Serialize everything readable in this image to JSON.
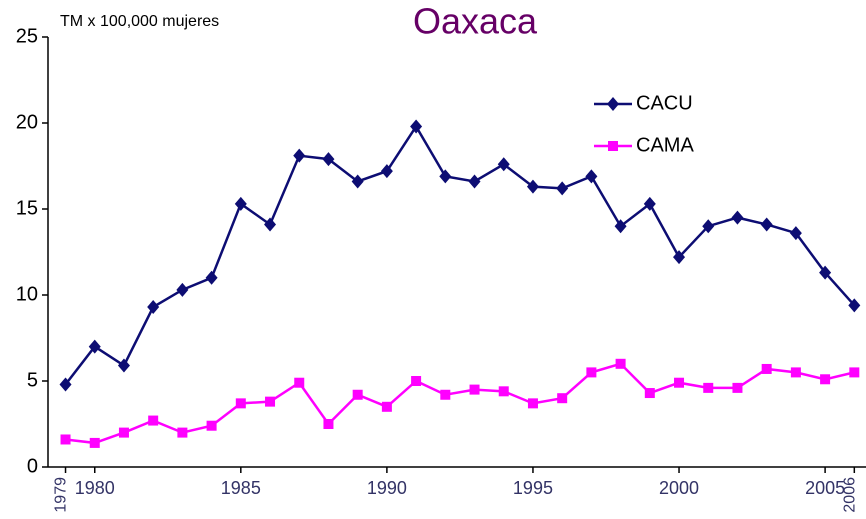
{
  "chart_data": {
    "type": "line",
    "title": "Oaxaca",
    "y_axis_label": "TM x 100,000 mujeres",
    "x": [
      1979,
      1980,
      1981,
      1982,
      1983,
      1984,
      1985,
      1986,
      1987,
      1988,
      1989,
      1990,
      1991,
      1992,
      1993,
      1994,
      1995,
      1996,
      1997,
      1998,
      1999,
      2000,
      2001,
      2002,
      2003,
      2004,
      2005,
      2006
    ],
    "series": [
      {
        "name": "CACU",
        "color": "#0d0d73",
        "marker": "diamond",
        "values": [
          4.8,
          7.0,
          5.9,
          9.3,
          10.3,
          11.0,
          15.3,
          14.1,
          18.1,
          17.9,
          16.6,
          17.2,
          19.8,
          16.9,
          16.6,
          17.6,
          16.3,
          16.2,
          16.9,
          14.0,
          15.3,
          12.2,
          14.0,
          14.5,
          14.1,
          13.6,
          11.3,
          9.4
        ]
      },
      {
        "name": "CAMA",
        "color": "#ff00ff",
        "marker": "square",
        "values": [
          1.6,
          1.4,
          2.0,
          2.7,
          2.0,
          2.4,
          3.7,
          3.8,
          4.9,
          2.5,
          4.2,
          3.5,
          5.0,
          4.2,
          4.5,
          4.4,
          3.7,
          4.0,
          5.5,
          6.0,
          4.3,
          4.9,
          4.6,
          4.6,
          5.7,
          5.5,
          5.1,
          5.5
        ]
      }
    ],
    "xlim": [
      1978.4,
      2006.4
    ],
    "xticks": [
      1979,
      1980,
      1985,
      1990,
      1995,
      2000,
      2005,
      2006
    ],
    "ylim": [
      0,
      25
    ],
    "yticks": [
      0,
      5,
      10,
      15,
      20,
      25
    ],
    "grid": false,
    "legend": "upper right"
  }
}
